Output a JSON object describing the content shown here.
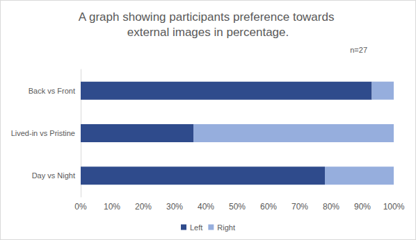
{
  "chart_data": {
    "type": "bar",
    "orientation": "horizontal",
    "stacked": true,
    "title": "A graph showing participants preference towards external images in percentage.",
    "annotations": [
      "n=27"
    ],
    "categories": [
      "Back vs Front",
      "Lived-in vs Pristine",
      "Day vs Night"
    ],
    "series": [
      {
        "name": "Left",
        "color": "#2f4b8c",
        "values": [
          93,
          36,
          78
        ]
      },
      {
        "name": "Right",
        "color": "#96aedd",
        "values": [
          7,
          64,
          22
        ]
      }
    ],
    "xlim": [
      0,
      100
    ],
    "xticks": [
      {
        "value": 0,
        "label": "0%"
      },
      {
        "value": 10,
        "label": "10%"
      },
      {
        "value": 20,
        "label": "20%"
      },
      {
        "value": 30,
        "label": "30%"
      },
      {
        "value": 40,
        "label": "40%"
      },
      {
        "value": 50,
        "label": "50%"
      },
      {
        "value": 60,
        "label": "60%"
      },
      {
        "value": 70,
        "label": "70%"
      },
      {
        "value": 80,
        "label": "80%"
      },
      {
        "value": 90,
        "label": "90%"
      },
      {
        "value": 100,
        "label": "100%"
      }
    ],
    "grid": false,
    "legend": "bottom"
  }
}
